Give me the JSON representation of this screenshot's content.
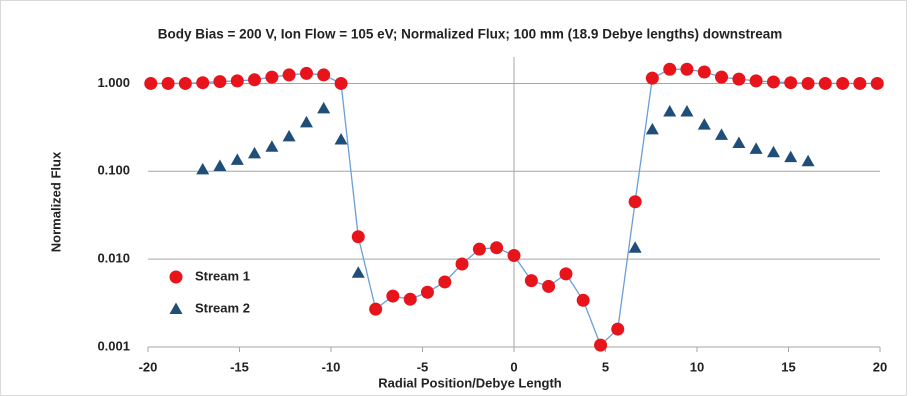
{
  "chart_data": {
    "type": "scatter",
    "title": "Body Bias = 200 V, Ion Flow = 105 eV; Normalized Flux; 100 mm (18.9 Debye lengths) downstream",
    "x_label": "Radial Position/Debye Length",
    "y_label": "Normalized Flux",
    "log_y": true,
    "grid": true,
    "legend": "bottom-left",
    "xlim": [
      -20,
      20
    ],
    "xticks": [
      -20,
      -15,
      -10,
      -5,
      0,
      5,
      10,
      15,
      20
    ],
    "ylim": [
      0.001,
      2
    ],
    "yticks": [
      {
        "value": 0.001,
        "label": "0.001"
      },
      {
        "value": 0.01,
        "label": "0.010"
      },
      {
        "value": 0.1,
        "label": "0.100"
      },
      {
        "value": 1,
        "label": "1.000"
      }
    ],
    "series": [
      {
        "name": "Stream 1",
        "color": "#e8141c",
        "marker": "circle",
        "line_color": "#6a9fd8",
        "x": [
          -19.85,
          -18.9,
          -17.96,
          -17.01,
          -16.07,
          -15.12,
          -14.18,
          -13.23,
          -12.29,
          -11.34,
          -10.4,
          -9.45,
          -8.51,
          -7.56,
          -6.62,
          -5.67,
          -4.73,
          -3.78,
          -2.84,
          -1.89,
          -0.95,
          0,
          0.95,
          1.89,
          2.84,
          3.78,
          4.73,
          5.67,
          6.62,
          7.56,
          8.51,
          9.45,
          10.4,
          11.34,
          12.29,
          13.23,
          14.18,
          15.12,
          16.07,
          17.01,
          17.96,
          18.9,
          19.85
        ],
        "values": [
          1.0,
          1.0,
          1.0,
          1.02,
          1.05,
          1.07,
          1.1,
          1.18,
          1.25,
          1.3,
          1.25,
          1.0,
          0.018,
          0.0027,
          0.0038,
          0.0035,
          0.0042,
          0.0055,
          0.0088,
          0.013,
          0.0135,
          0.011,
          0.0057,
          0.0049,
          0.0068,
          0.0034,
          0.00105,
          0.0016,
          0.045,
          1.15,
          1.45,
          1.45,
          1.35,
          1.18,
          1.12,
          1.07,
          1.04,
          1.02,
          1.0,
          1.0,
          1.0,
          1.0,
          1.0
        ]
      },
      {
        "name": "Stream 2",
        "color": "#1f4e79",
        "marker": "triangle",
        "x": [
          -17.01,
          -16.07,
          -15.12,
          -14.18,
          -13.23,
          -12.29,
          -11.34,
          -10.4,
          -9.45,
          -8.51,
          6.62,
          7.56,
          8.51,
          9.45,
          10.4,
          11.34,
          12.29,
          13.23,
          14.18,
          15.12,
          16.07
        ],
        "values": [
          0.105,
          0.115,
          0.135,
          0.16,
          0.19,
          0.25,
          0.36,
          0.52,
          0.23,
          0.007,
          0.0135,
          0.3,
          0.48,
          0.48,
          0.34,
          0.26,
          0.21,
          0.18,
          0.165,
          0.145,
          0.13
        ]
      }
    ]
  }
}
